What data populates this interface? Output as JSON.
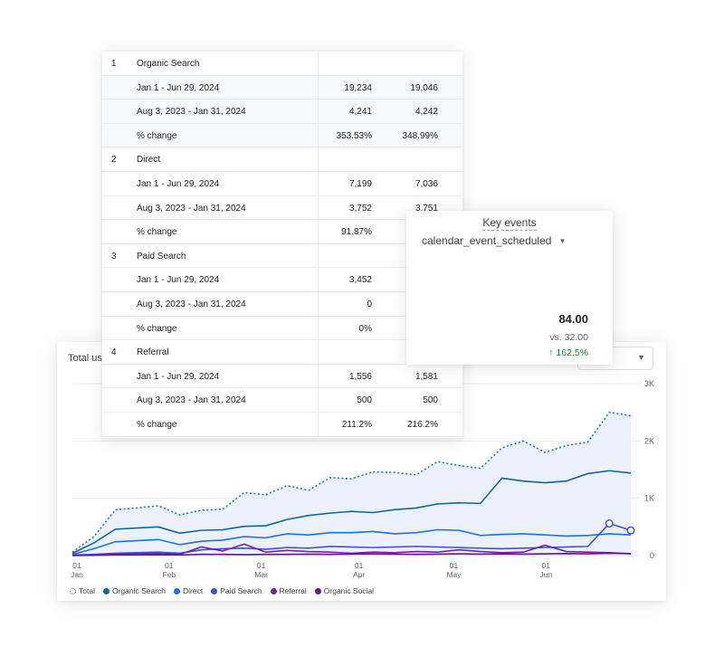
{
  "table": {
    "rows": [
      {
        "num": "1",
        "label": "Organic Search",
        "v1": "",
        "v2": "",
        "sub": false
      },
      {
        "num": "",
        "label": "Jan 1 - Jun 29, 2024",
        "v1": "19,234",
        "v2": "19,046",
        "sub": true
      },
      {
        "num": "",
        "label": "Aug 3, 2023 - Jan 31, 2024",
        "v1": "4,241",
        "v2": "4,242",
        "sub": true
      },
      {
        "num": "",
        "label": "% change",
        "v1": "353.53%",
        "v2": "348.99%",
        "sub": true
      },
      {
        "num": "2",
        "label": "Direct",
        "v1": "",
        "v2": "",
        "sub": false
      },
      {
        "num": "",
        "label": "Jan 1 - Jun 29, 2024",
        "v1": "7,199",
        "v2": "7,036",
        "sub": false
      },
      {
        "num": "",
        "label": "Aug 3, 2023 - Jan 31, 2024",
        "v1": "3,752",
        "v2": "3,751",
        "sub": false
      },
      {
        "num": "",
        "label": "% change",
        "v1": "91.87%",
        "v2": "",
        "sub": false
      },
      {
        "num": "3",
        "label": "Paid Search",
        "v1": "",
        "v2": "",
        "sub": false
      },
      {
        "num": "",
        "label": "Jan 1 - Jun 29, 2024",
        "v1": "3,452",
        "v2": "",
        "sub": false
      },
      {
        "num": "",
        "label": "Aug 3, 2023 - Jan 31, 2024",
        "v1": "0",
        "v2": "",
        "sub": false
      },
      {
        "num": "",
        "label": "% change",
        "v1": "0%",
        "v2": "",
        "sub": false
      },
      {
        "num": "4",
        "label": "Referral",
        "v1": "",
        "v2": "",
        "sub": false
      },
      {
        "num": "",
        "label": "Jan 1 - Jun 29, 2024",
        "v1": "1,556",
        "v2": "1,581",
        "sub": false
      },
      {
        "num": "",
        "label": "Aug 3, 2023 - Jan 31, 2024",
        "v1": "500",
        "v2": "500",
        "sub": false
      },
      {
        "num": "",
        "label": "% change",
        "v1": "211.2%",
        "v2": "216.2%",
        "sub": false
      }
    ]
  },
  "key_events": {
    "title": "Key events",
    "event_name": "calendar_event_scheduled",
    "value": "84.00",
    "vs": "vs. 32.00",
    "change": "↑ 162.5%"
  },
  "chart": {
    "title": "Total use"
  },
  "colors": {
    "total": "#1a73e8",
    "organic": "#12649e",
    "direct": "#1a73e8",
    "paid": "#3c4fd6",
    "referral": "#7b1fa2",
    "social": "#5e1a8a",
    "positive": "#188038"
  },
  "chart_data": {
    "type": "line",
    "x_ticks": [
      {
        "day": "01",
        "month": "Jan"
      },
      {
        "day": "01",
        "month": "Feb"
      },
      {
        "day": "01",
        "month": "Mar"
      },
      {
        "day": "01",
        "month": "Apr"
      },
      {
        "day": "01",
        "month": "May"
      },
      {
        "day": "01",
        "month": "Jun"
      }
    ],
    "y_ticks": [
      "3K",
      "2K",
      "1K",
      "0"
    ],
    "ylim": [
      0,
      3000
    ],
    "grid": true,
    "legend_position": "bottom-left",
    "series": [
      {
        "name": "Total",
        "style": "dotted-area",
        "values": [
          60,
          330,
          800,
          830,
          870,
          710,
          790,
          810,
          1100,
          1060,
          1220,
          1140,
          1360,
          1340,
          1460,
          1450,
          1410,
          1640,
          1570,
          1520,
          1880,
          2000,
          1800,
          1920,
          1980,
          2500,
          2440
        ]
      },
      {
        "name": "Organic Search",
        "style": "line",
        "values": [
          40,
          220,
          460,
          480,
          500,
          390,
          440,
          450,
          510,
          520,
          630,
          700,
          740,
          770,
          750,
          800,
          830,
          900,
          920,
          910,
          1350,
          1300,
          1270,
          1300,
          1430,
          1480,
          1440
        ]
      },
      {
        "name": "Direct",
        "style": "line",
        "values": [
          20,
          120,
          240,
          260,
          280,
          190,
          250,
          270,
          330,
          310,
          380,
          360,
          400,
          400,
          420,
          380,
          400,
          450,
          440,
          350,
          370,
          380,
          360,
          340,
          350,
          380,
          360
        ]
      },
      {
        "name": "Paid Search",
        "style": "line",
        "markers_last": true,
        "values": [
          10,
          20,
          40,
          50,
          60,
          40,
          100,
          120,
          130,
          110,
          140,
          130,
          160,
          150,
          140,
          150,
          160,
          150,
          140,
          130,
          120,
          130,
          140,
          150,
          160,
          560,
          440
        ]
      },
      {
        "name": "Referral",
        "style": "line",
        "values": [
          5,
          10,
          20,
          30,
          35,
          20,
          150,
          80,
          200,
          60,
          90,
          70,
          60,
          40,
          60,
          50,
          70,
          60,
          100,
          70,
          50,
          60,
          180,
          70,
          60,
          50,
          30
        ]
      },
      {
        "name": "Organic Social",
        "style": "line",
        "values": [
          0,
          5,
          10,
          10,
          15,
          10,
          20,
          20,
          15,
          20,
          20,
          25,
          20,
          25,
          30,
          25,
          20,
          25,
          30,
          25,
          30,
          25,
          30,
          35,
          30,
          40,
          35
        ]
      }
    ]
  }
}
